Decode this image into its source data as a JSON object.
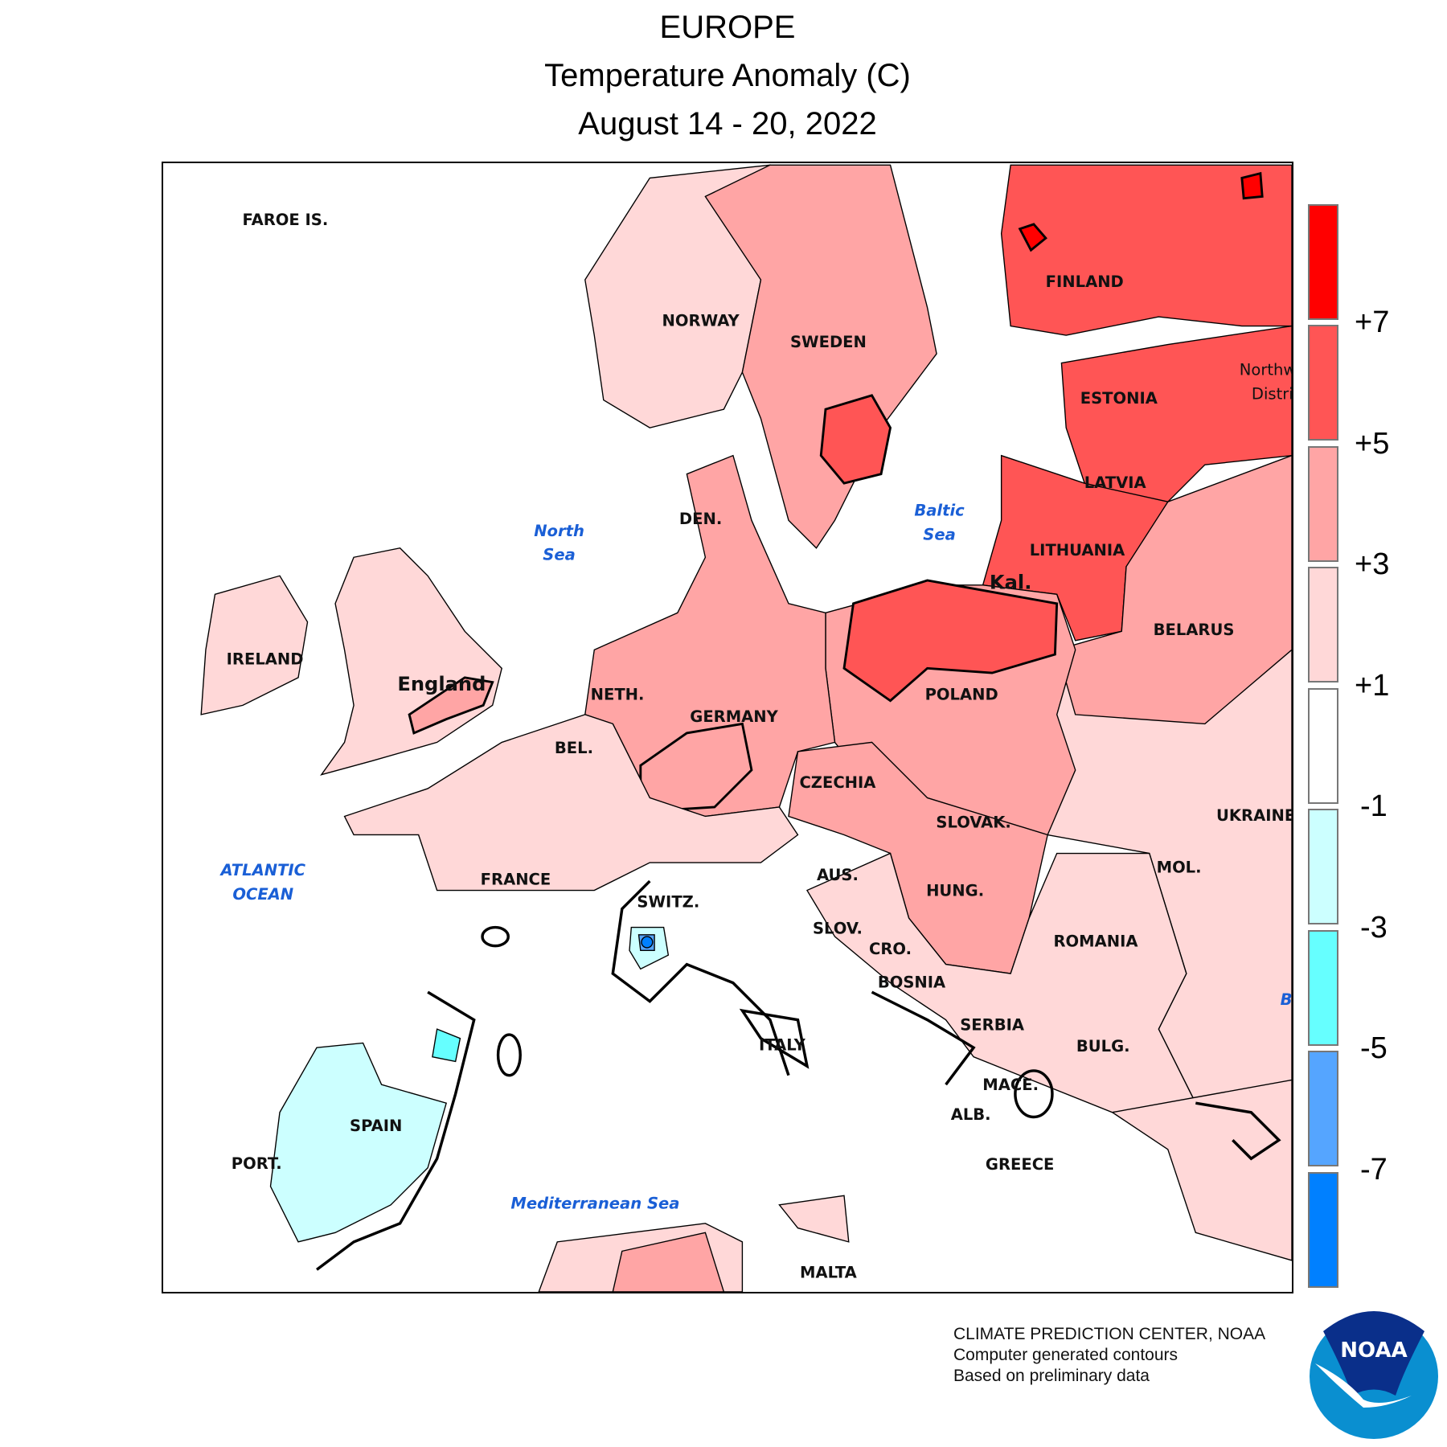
{
  "title": {
    "region": "EUROPE",
    "variable": "Temperature Anomaly (C)",
    "period": "August 14 - 20, 2022"
  },
  "legend": {
    "bins": [
      {
        "color": "#ff0000"
      },
      {
        "color": "#ff5555"
      },
      {
        "color": "#ffa5a5"
      },
      {
        "color": "#ffd8d8"
      },
      {
        "color": "#ffffff"
      },
      {
        "color": "#ccffff"
      },
      {
        "color": "#66ffff"
      },
      {
        "color": "#55a5ff"
      },
      {
        "color": "#0080ff"
      }
    ],
    "ticks": [
      "+7",
      "+5",
      "+3",
      "+1",
      "-1",
      "-3",
      "-5",
      "-7"
    ]
  },
  "labels": {
    "faroe": "FAROE IS.",
    "norway": "NORWAY",
    "sweden": "SWEDEN",
    "finland": "FINLAND",
    "estonia": "ESTONIA",
    "latvia": "LATVIA",
    "lithuania": "LITHUANIA",
    "kal": "Kal.",
    "belarus": "BELARUS",
    "poland": "POLAND",
    "germany": "GERMANY",
    "neth": "NETH.",
    "bel": "BEL.",
    "den": "DEN.",
    "czechia": "CZECHIA",
    "slovak": "SLOVAK.",
    "ukraine": "UKRAINE",
    "mol": "MOL.",
    "hung": "HUNG.",
    "aus": "AUS.",
    "switz": "SWITZ.",
    "slov": "SLOV.",
    "cro": "CRO.",
    "bosnia": "BOSNIA",
    "romania": "ROMANIA",
    "serbia": "SERBIA",
    "bulg": "BULG.",
    "italy": "ITALY",
    "mace": "MACE.",
    "alb": "ALB.",
    "greece": "GREECE",
    "spain": "SPAIN",
    "port": "PORT.",
    "france": "FRANCE",
    "ireland": "IRELAND",
    "england": "England",
    "malta": "MALTA",
    "northw1": "Northw",
    "northw2": "Distri"
  },
  "seas": {
    "atlantic1": "ATLANTIC",
    "atlantic2": "OCEAN",
    "north1": "North",
    "north2": "Sea",
    "baltic1": "Baltic",
    "baltic2": "Sea",
    "med": "Mediterranean Sea",
    "black": "B"
  },
  "footer": {
    "line1": "CLIMATE PREDICTION CENTER, NOAA",
    "line2": "Computer generated contours",
    "line3": "Based on preliminary data",
    "logo_text": "NOAA"
  }
}
